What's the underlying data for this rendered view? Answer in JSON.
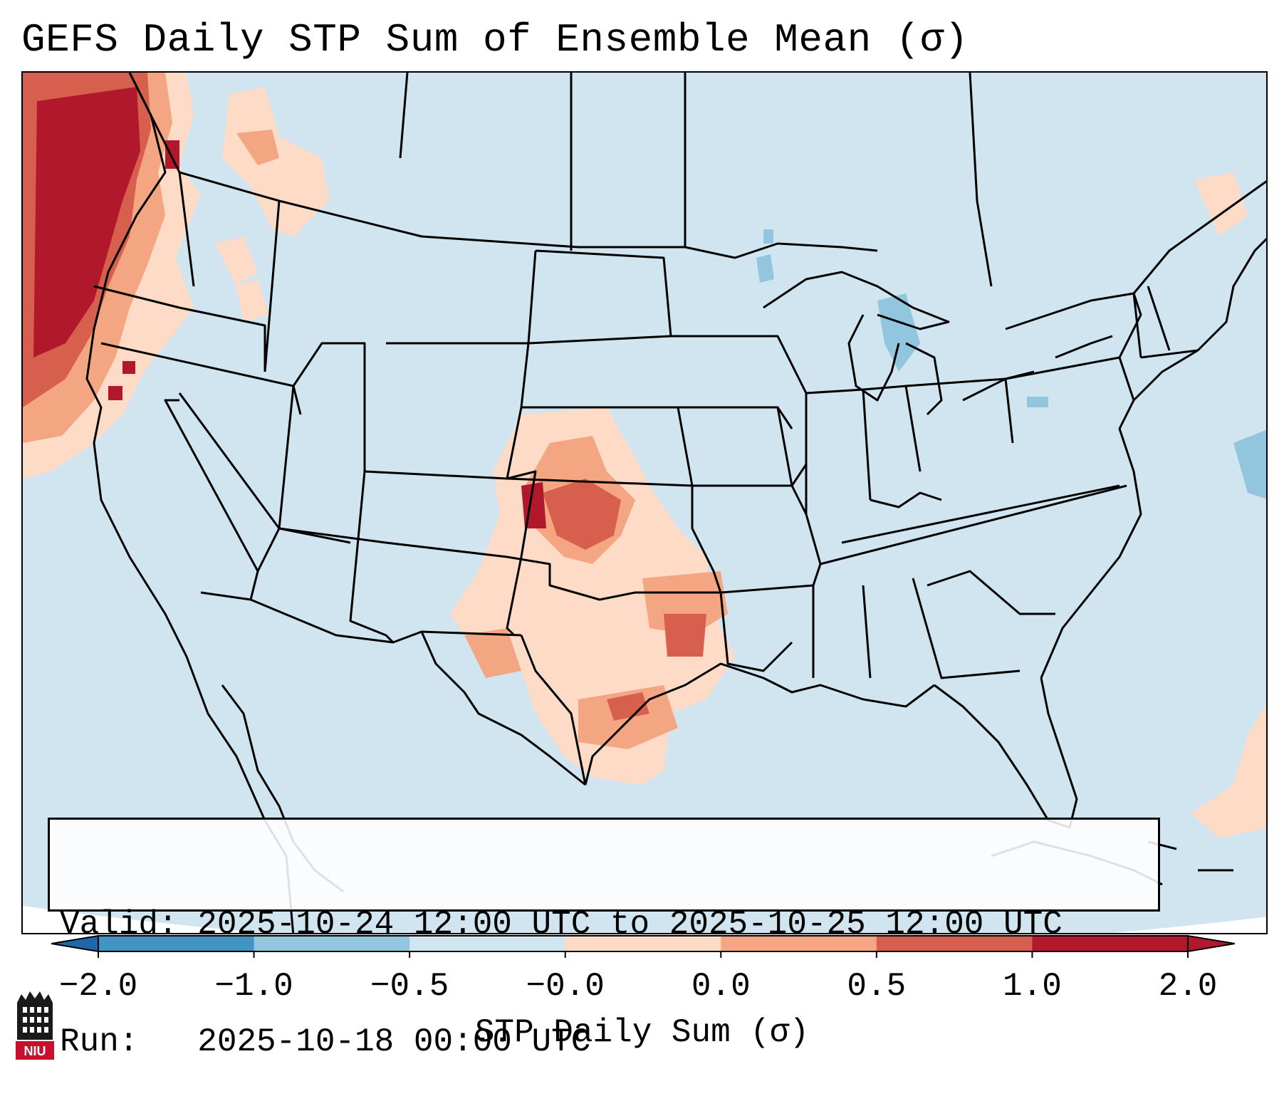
{
  "title": "GEFS Daily STP Sum of Ensemble Mean (σ)",
  "info": {
    "valid_line": "Valid: 2025-10-24 12:00 UTC to 2025-10-25 12:00 UTC",
    "run_line": "Run:   2025-10-18 00:00 UTC"
  },
  "colorbar": {
    "label": "STP Daily Sum (σ)",
    "ticks": [
      "−2.0",
      "−1.0",
      "−0.5",
      "−0.0",
      "0.0",
      "0.5",
      "1.0",
      "2.0"
    ],
    "colors": [
      "#4393c3",
      "#92c5de",
      "#d1e5f0",
      "#fddbc7",
      "#f4a582",
      "#d6604d",
      "#b2182b"
    ],
    "under_color": "#2166ac",
    "over_color": "#b2182b"
  },
  "map": {
    "background_color": "#d1e5f0",
    "region": "Continental United States"
  },
  "logo": {
    "text": "NIU"
  }
}
